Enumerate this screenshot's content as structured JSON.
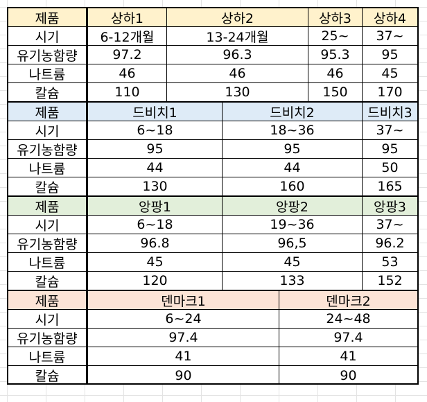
{
  "row_labels": {
    "product": "제품",
    "period": "시기",
    "organic": "유기농함량",
    "sodium": "나트륨",
    "calcium": "칼슘"
  },
  "colors": {
    "shanghai_header": "#fff2cc",
    "dbichi_header": "#deebf7",
    "angpang_header": "#e2efda",
    "denmark_header": "#fce4d6"
  },
  "shanghai": {
    "products": [
      "상하1",
      "상하2",
      "상하3",
      "상하4"
    ],
    "period": [
      "6-12개월",
      "13-24개월",
      "25~",
      "37~"
    ],
    "organic": [
      "97.2",
      "96.3",
      "95.3",
      "95"
    ],
    "sodium": [
      "46",
      "46",
      "46",
      "45"
    ],
    "calcium": [
      "110",
      "130",
      "150",
      "170"
    ]
  },
  "dbichi": {
    "products": [
      "드비치1",
      "드비치2",
      "드비치3"
    ],
    "period": [
      "6~18",
      "18~36",
      "37~"
    ],
    "organic": [
      "95",
      "95",
      "95"
    ],
    "sodium": [
      "44",
      "44",
      "50"
    ],
    "calcium": [
      "130",
      "160",
      "165"
    ]
  },
  "angpang": {
    "products": [
      "앙팡1",
      "앙팡2",
      "앙팡3"
    ],
    "period": [
      "6~18",
      "19~36",
      "37~"
    ],
    "organic": [
      "96.8",
      "96,5",
      "96.2"
    ],
    "sodium": [
      "45",
      "45",
      "53"
    ],
    "calcium": [
      "120",
      "133",
      "152"
    ]
  },
  "denmark": {
    "products": [
      "덴마크1",
      "덴마크2"
    ],
    "period": [
      "6~24",
      "24~48"
    ],
    "organic": [
      "97.4",
      "97.4"
    ],
    "sodium": [
      "41",
      "41"
    ],
    "calcium": [
      "90",
      "90"
    ]
  }
}
